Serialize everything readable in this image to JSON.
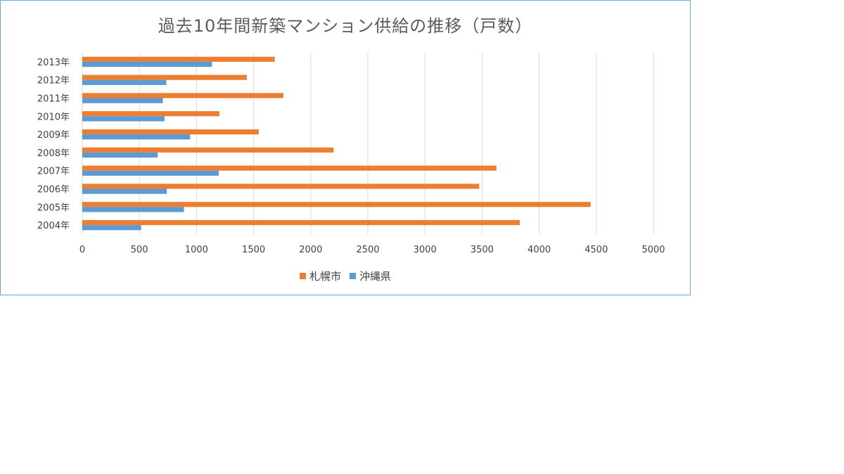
{
  "chart_data": {
    "type": "bar",
    "orientation": "horizontal",
    "title": "過去10年間新築マンション供給の推移（戸数）",
    "categories": [
      "2004年",
      "2005年",
      "2006年",
      "2007年",
      "2008年",
      "2009年",
      "2010年",
      "2011年",
      "2012年",
      "2013年"
    ],
    "series": [
      {
        "name": "札幌市",
        "color": "#ed7d31",
        "values": [
          3830,
          4450,
          3475,
          3625,
          2200,
          1545,
          1200,
          1760,
          1440,
          1685
        ]
      },
      {
        "name": "沖縄県",
        "color": "#5b9bd5",
        "values": [
          515,
          890,
          740,
          1195,
          660,
          945,
          720,
          705,
          735,
          1135
        ]
      }
    ],
    "xlim": [
      0,
      5000
    ],
    "xticks": [
      "0",
      "500",
      "1000",
      "1500",
      "2000",
      "2500",
      "3000",
      "3500",
      "4000",
      "4500",
      "5000"
    ],
    "grid": true,
    "legend_position": "bottom"
  }
}
